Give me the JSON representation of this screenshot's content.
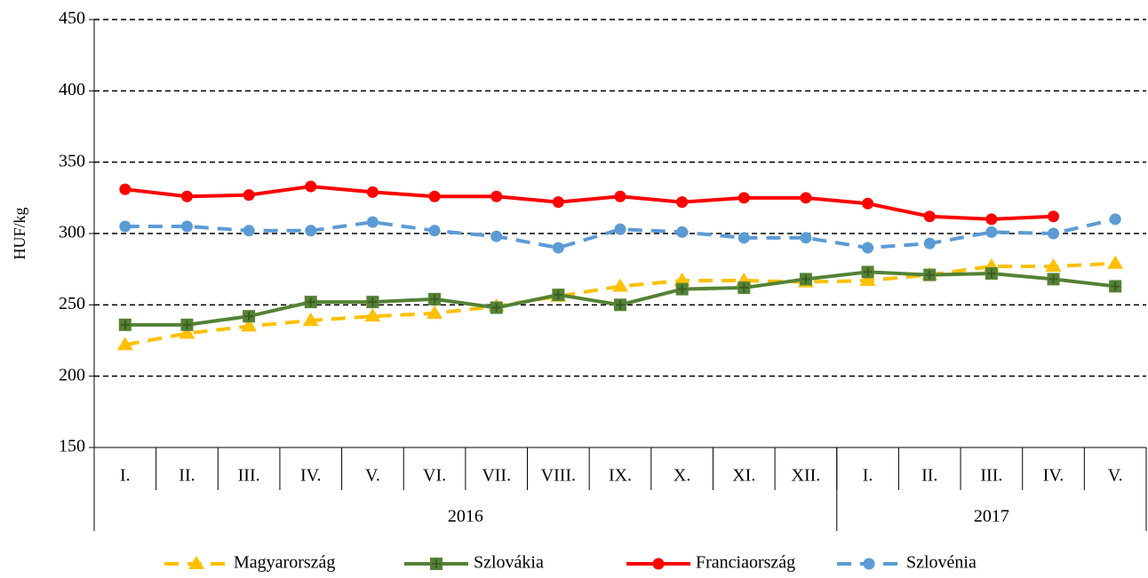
{
  "chart_data": {
    "type": "line",
    "y_label": "HUF/kg",
    "categories": [
      "I.",
      "II.",
      "III.",
      "IV.",
      "V.",
      "VI.",
      "VII.",
      "VIII.",
      "IX.",
      "X.",
      "XI.",
      "XII.",
      "I.",
      "II.",
      "III.",
      "IV.",
      "V."
    ],
    "x_groups": [
      {
        "label": "2016",
        "span": 12
      },
      {
        "label": "2017",
        "span": 5
      }
    ],
    "series": [
      {
        "name": "Magyarország",
        "color": "#ffc000",
        "dash": true,
        "marker": "triangle",
        "values": [
          222,
          230,
          235,
          239,
          242,
          244,
          249,
          256,
          263,
          267,
          267,
          266,
          267,
          271,
          277,
          277,
          279
        ]
      },
      {
        "name": "Szlovákia",
        "color": "#548235",
        "dash": false,
        "marker": "square",
        "values": [
          236,
          236,
          242,
          252,
          252,
          254,
          248,
          257,
          250,
          261,
          262,
          268,
          273,
          271,
          272,
          268,
          263
        ]
      },
      {
        "name": "Franciaország",
        "color": "#ff0000",
        "dash": false,
        "marker": "circle",
        "values": [
          331,
          326,
          327,
          333,
          329,
          326,
          326,
          322,
          326,
          322,
          325,
          325,
          321,
          312,
          310,
          312,
          null
        ]
      },
      {
        "name": "Szlovénia",
        "color": "#5b9bd5",
        "dash": true,
        "marker": "circle",
        "values": [
          305,
          305,
          302,
          302,
          308,
          302,
          298,
          290,
          303,
          301,
          297,
          297,
          290,
          293,
          301,
          300,
          310
        ]
      }
    ],
    "ylim": [
      150,
      450
    ],
    "yticks": [
      150,
      200,
      250,
      300,
      350,
      400,
      450
    ],
    "grid": true,
    "legend": "bottom"
  }
}
